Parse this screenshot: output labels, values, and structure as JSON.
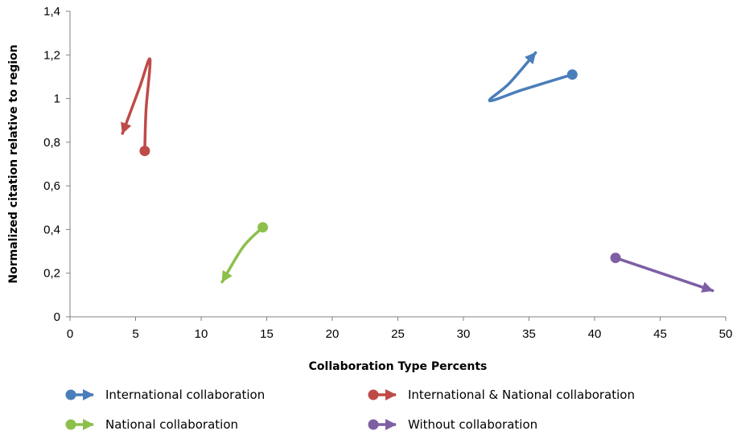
{
  "chart_data": {
    "type": "scatter",
    "title": "",
    "xlabel": "Collaboration Type Percents",
    "ylabel": "Normalized citation relative to region",
    "xlim": [
      0,
      50
    ],
    "ylim": [
      0,
      1.4
    ],
    "x_ticks": [
      "0",
      "5",
      "10",
      "15",
      "20",
      "25",
      "30",
      "35",
      "40",
      "45",
      "50"
    ],
    "y_ticks": [
      "0",
      "0,2",
      "0,4",
      "0,6",
      "0,8",
      "1",
      "1,2",
      "1,4"
    ],
    "grid": false,
    "legend_position": "bottom",
    "series": [
      {
        "name": "International collaboration",
        "color": "#4a7ebb",
        "points": [
          [
            38.3,
            1.11
          ],
          [
            34.5,
            1.04
          ],
          [
            32.0,
            0.99
          ],
          [
            33.5,
            1.07
          ],
          [
            35.5,
            1.21
          ]
        ]
      },
      {
        "name": "International & National collaboration",
        "color": "#be4b48",
        "points": [
          [
            5.7,
            0.76
          ],
          [
            5.8,
            0.95
          ],
          [
            6.1,
            1.18
          ],
          [
            5.3,
            1.05
          ],
          [
            4.0,
            0.84
          ]
        ]
      },
      {
        "name": "National collaboration",
        "color": "#8dc04b",
        "points": [
          [
            14.7,
            0.41
          ],
          [
            13.2,
            0.32
          ],
          [
            11.6,
            0.16
          ]
        ]
      },
      {
        "name": "Without collaboration",
        "color": "#7e5fa3",
        "points": [
          [
            41.6,
            0.27
          ],
          [
            49.0,
            0.12
          ]
        ]
      }
    ]
  }
}
